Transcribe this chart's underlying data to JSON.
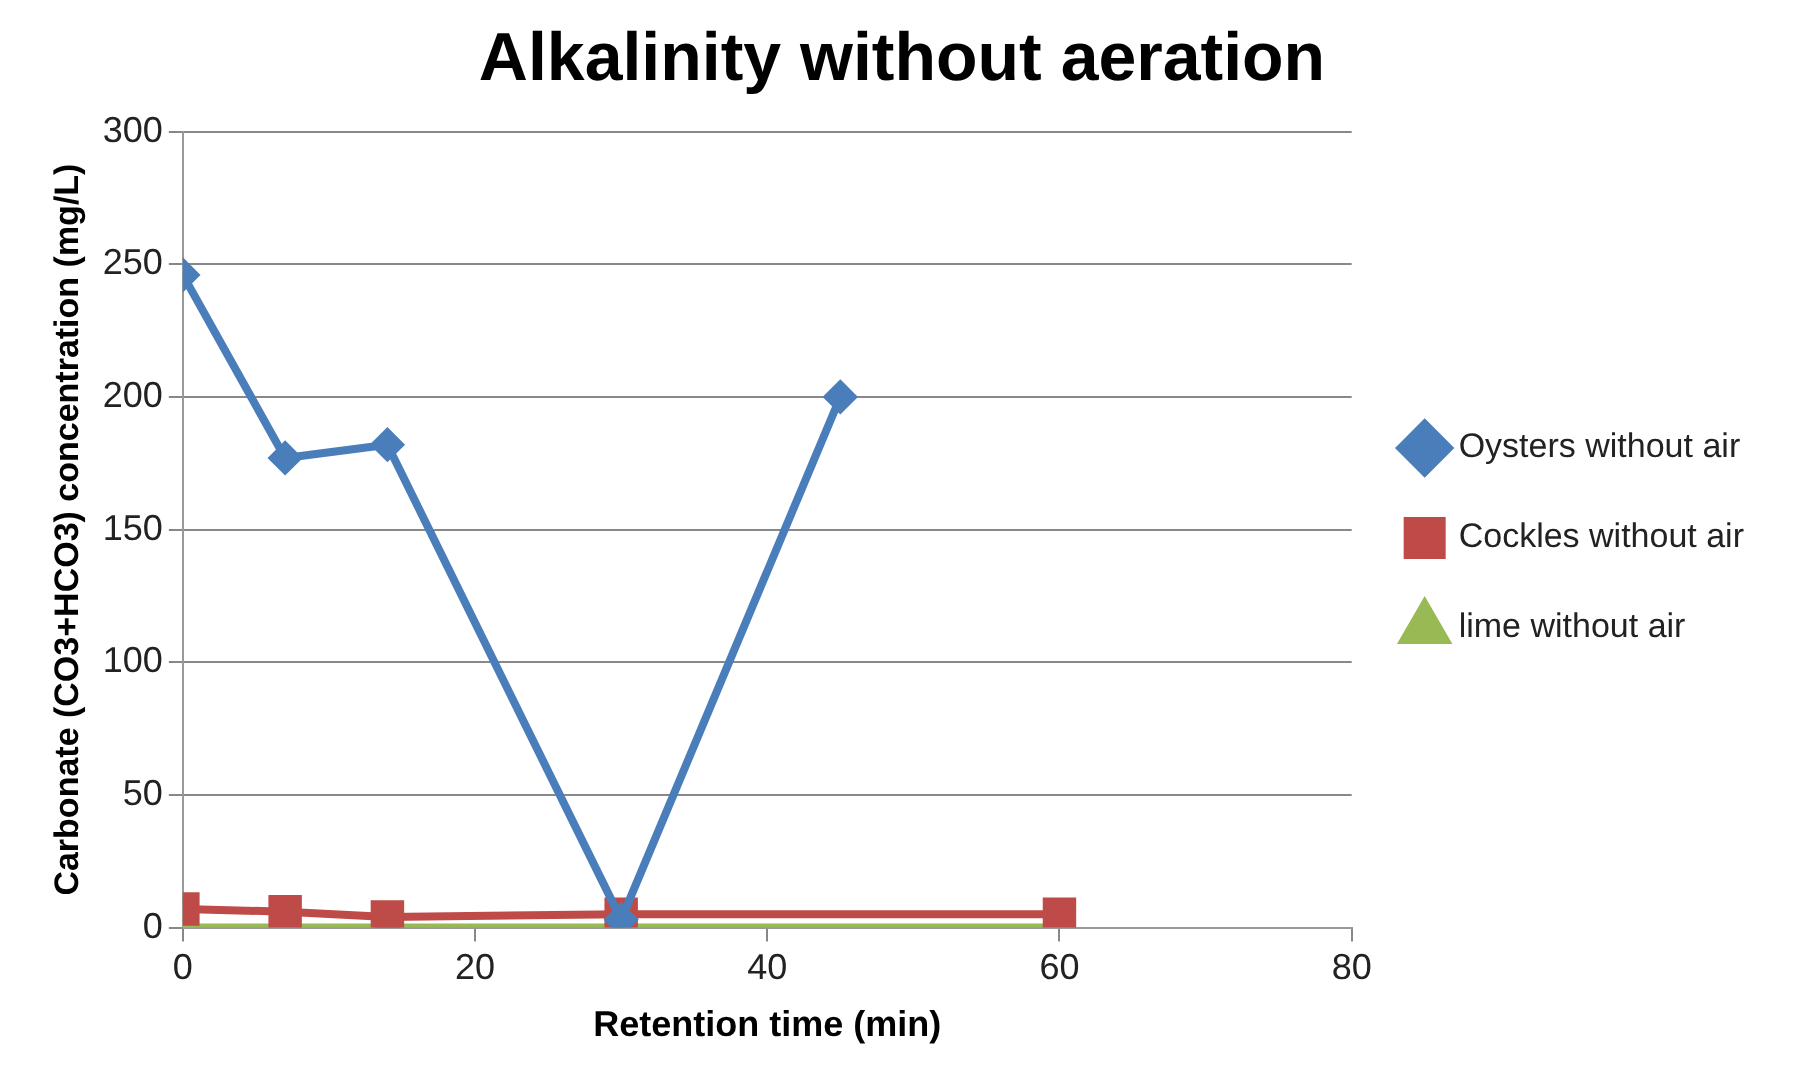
{
  "chart_data": {
    "type": "line",
    "title": "Alkalinity without aeration",
    "xlabel": "Retention time (min)",
    "ylabel": "Carbonate (CO3+HCO3) concentration (mg/L)",
    "xlim": [
      0,
      80
    ],
    "xticks": [
      0,
      20,
      40,
      60,
      80
    ],
    "ylim": [
      0,
      300
    ],
    "yticks": [
      0,
      50,
      100,
      150,
      200,
      250,
      300
    ],
    "grid": "y",
    "legend": "right",
    "series": [
      {
        "name": "Oysters without air",
        "color": "#4a7ebb",
        "marker": "diamond",
        "x": [
          0,
          7,
          14,
          30,
          45
        ],
        "values": [
          246,
          177,
          182,
          3,
          200
        ]
      },
      {
        "name": "Cockles without air",
        "color": "#be4b48",
        "marker": "square",
        "x": [
          0,
          7,
          14,
          30,
          60
        ],
        "values": [
          7,
          6,
          4,
          5,
          5
        ]
      },
      {
        "name": "lime without air",
        "color": "#98b954",
        "marker": "triangle",
        "x": [
          0,
          7,
          14,
          30,
          60
        ],
        "values": [
          0,
          0,
          0,
          0,
          0
        ]
      }
    ]
  }
}
